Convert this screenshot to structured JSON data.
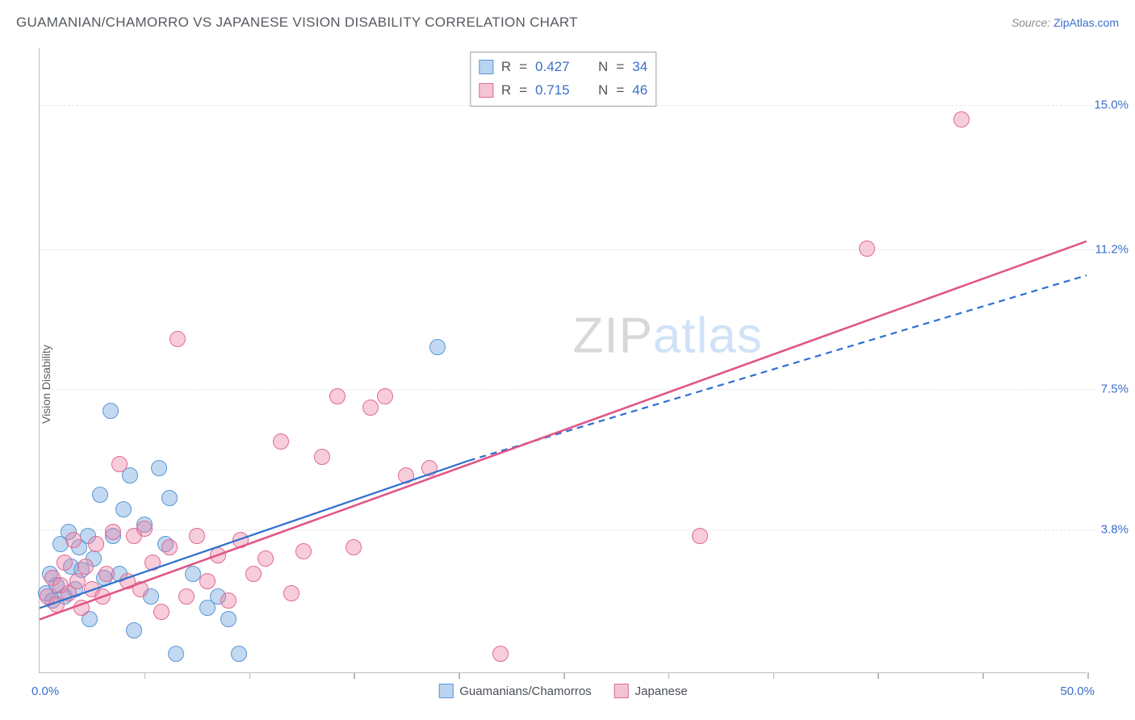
{
  "header": {
    "title": "GUAMANIAN/CHAMORRO VS JAPANESE VISION DISABILITY CORRELATION CHART",
    "source_prefix": "Source: ",
    "source_name": "ZipAtlas.com"
  },
  "watermark": {
    "part1": "ZIP",
    "part2": "atlas"
  },
  "chart": {
    "type": "scatter",
    "ylabel": "Vision Disability",
    "background_color": "#ffffff",
    "grid_color": "#e4e6e9",
    "axis_color": "#b8bcc2",
    "text_color": "#5a5f66",
    "value_color": "#3b6fc9",
    "xlim": [
      0,
      50
    ],
    "ylim": [
      0,
      16.5
    ],
    "x_ticks": [
      5,
      10,
      15,
      20,
      25,
      30,
      35,
      40,
      45,
      50
    ],
    "x_tick_labels": {
      "left": "0.0%",
      "right": "50.0%"
    },
    "y_gridlines": [
      3.8,
      7.5,
      11.2,
      15.0
    ],
    "y_tick_labels": [
      "3.8%",
      "7.5%",
      "11.2%",
      "15.0%"
    ],
    "point_radius": 10,
    "series": [
      {
        "id": "guamanians",
        "label": "Guamanians/Chamorros",
        "color_fill": "rgba(120,170,225,0.45)",
        "color_stroke": "#5a97d4",
        "swatch_fill": "#b9d4ef",
        "swatch_stroke": "#5a97d4",
        "R": "0.427",
        "N": "34",
        "trend": {
          "solid": {
            "x1": 0,
            "y1": 1.7,
            "x2": 20.5,
            "y2": 5.6
          },
          "dashed": {
            "x1": 20.5,
            "y1": 5.6,
            "x2": 50,
            "y2": 10.5
          },
          "color": "#2f6fd0",
          "width": 2.2
        },
        "points": [
          [
            0.3,
            2.1
          ],
          [
            0.5,
            2.6
          ],
          [
            0.6,
            1.9
          ],
          [
            0.8,
            2.3
          ],
          [
            1.0,
            3.4
          ],
          [
            1.2,
            2.0
          ],
          [
            1.4,
            3.7
          ],
          [
            1.5,
            2.8
          ],
          [
            1.7,
            2.2
          ],
          [
            1.9,
            3.3
          ],
          [
            2.0,
            2.7
          ],
          [
            2.3,
            3.6
          ],
          [
            2.4,
            1.4
          ],
          [
            2.6,
            3.0
          ],
          [
            2.9,
            4.7
          ],
          [
            3.1,
            2.5
          ],
          [
            3.4,
            6.9
          ],
          [
            3.5,
            3.6
          ],
          [
            3.8,
            2.6
          ],
          [
            4.0,
            4.3
          ],
          [
            4.3,
            5.2
          ],
          [
            4.5,
            1.1
          ],
          [
            5.0,
            3.9
          ],
          [
            5.3,
            2.0
          ],
          [
            5.7,
            5.4
          ],
          [
            6.0,
            3.4
          ],
          [
            6.2,
            4.6
          ],
          [
            6.5,
            0.5
          ],
          [
            7.3,
            2.6
          ],
          [
            8.0,
            1.7
          ],
          [
            8.5,
            2.0
          ],
          [
            9.0,
            1.4
          ],
          [
            9.5,
            0.5
          ],
          [
            19.0,
            8.6
          ]
        ]
      },
      {
        "id": "japanese",
        "label": "Japanese",
        "color_fill": "rgba(235,130,165,0.40)",
        "color_stroke": "#e06a93",
        "swatch_fill": "#f3c5d4",
        "swatch_stroke": "#e06a93",
        "R": "0.715",
        "N": "46",
        "trend": {
          "solid": {
            "x1": 0,
            "y1": 1.4,
            "x2": 50,
            "y2": 11.4
          },
          "color": "#e05585",
          "width": 2.5
        },
        "points": [
          [
            0.4,
            2.0
          ],
          [
            0.6,
            2.5
          ],
          [
            0.8,
            1.8
          ],
          [
            1.0,
            2.3
          ],
          [
            1.2,
            2.9
          ],
          [
            1.4,
            2.1
          ],
          [
            1.6,
            3.5
          ],
          [
            1.8,
            2.4
          ],
          [
            2.0,
            1.7
          ],
          [
            2.2,
            2.8
          ],
          [
            2.5,
            2.2
          ],
          [
            2.7,
            3.4
          ],
          [
            3.0,
            2.0
          ],
          [
            3.2,
            2.6
          ],
          [
            3.5,
            3.7
          ],
          [
            3.8,
            5.5
          ],
          [
            4.2,
            2.4
          ],
          [
            4.5,
            3.6
          ],
          [
            4.8,
            2.2
          ],
          [
            5.0,
            3.8
          ],
          [
            5.4,
            2.9
          ],
          [
            5.8,
            1.6
          ],
          [
            6.2,
            3.3
          ],
          [
            6.6,
            8.8
          ],
          [
            7.0,
            2.0
          ],
          [
            7.5,
            3.6
          ],
          [
            8.0,
            2.4
          ],
          [
            8.5,
            3.1
          ],
          [
            9.0,
            1.9
          ],
          [
            9.6,
            3.5
          ],
          [
            10.2,
            2.6
          ],
          [
            10.8,
            3.0
          ],
          [
            11.5,
            6.1
          ],
          [
            12.0,
            2.1
          ],
          [
            12.6,
            3.2
          ],
          [
            13.5,
            5.7
          ],
          [
            14.2,
            7.3
          ],
          [
            15.0,
            3.3
          ],
          [
            15.8,
            7.0
          ],
          [
            16.5,
            7.3
          ],
          [
            17.5,
            5.2
          ],
          [
            18.6,
            5.4
          ],
          [
            22.0,
            0.5
          ],
          [
            31.5,
            3.6
          ],
          [
            39.5,
            11.2
          ],
          [
            44.0,
            14.6
          ]
        ]
      }
    ]
  },
  "legend_top_labels": {
    "R": "R",
    "eq": "=",
    "N": "N"
  }
}
